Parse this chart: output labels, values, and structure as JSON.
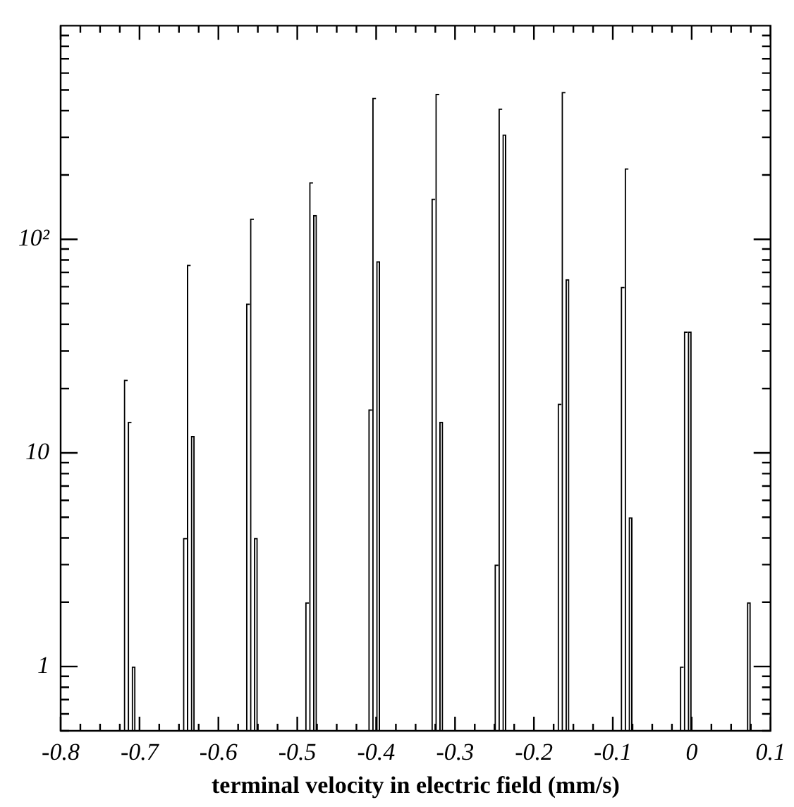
{
  "chart_data": {
    "type": "histogram",
    "xlabel": "terminal velocity in electric field (mm/s)",
    "color": "#000000",
    "log": "y",
    "bins": [
      -0.72,
      -0.715,
      -0.71,
      -0.705,
      -0.645,
      -0.64,
      -0.635,
      -0.63,
      -0.565,
      -0.56,
      -0.555,
      -0.55,
      -0.49,
      -0.485,
      -0.48,
      -0.475,
      -0.41,
      -0.405,
      -0.4,
      -0.395,
      -0.33,
      -0.325,
      -0.32,
      -0.315,
      -0.25,
      -0.245,
      -0.24,
      -0.235,
      -0.17,
      -0.165,
      -0.16,
      -0.155,
      -0.09,
      -0.085,
      -0.08,
      -0.075,
      -0.015,
      -0.01,
      -0.005,
      0,
      0.07,
      0.075
    ],
    "values": [
      22,
      14,
      1,
      null,
      4,
      76,
      12,
      null,
      50,
      125,
      4,
      null,
      2,
      185,
      130,
      null,
      16,
      460,
      79,
      null,
      155,
      480,
      14,
      null,
      3,
      410,
      310,
      null,
      17,
      490,
      65,
      null,
      60,
      215,
      5,
      null,
      1,
      37,
      37,
      null,
      2
    ],
    "xlim": [
      -0.8,
      0.1
    ],
    "xticks": [
      -0.8,
      {
        "value": -0.775,
        "label": null
      },
      {
        "value": -0.75,
        "label": null
      },
      {
        "value": -0.725,
        "label": null
      },
      -0.7,
      {
        "value": -0.675,
        "label": null
      },
      {
        "value": -0.65,
        "label": null
      },
      {
        "value": -0.625,
        "label": null
      },
      -0.6,
      {
        "value": -0.575,
        "label": null
      },
      {
        "value": -0.55,
        "label": null
      },
      {
        "value": -0.525,
        "label": null
      },
      -0.5,
      {
        "value": -0.475,
        "label": null
      },
      {
        "value": -0.45,
        "label": null
      },
      {
        "value": -0.425,
        "label": null
      },
      -0.4,
      {
        "value": -0.375,
        "label": null
      },
      {
        "value": -0.35,
        "label": null
      },
      {
        "value": -0.325,
        "label": null
      },
      -0.3,
      {
        "value": -0.275,
        "label": null
      },
      {
        "value": -0.25,
        "label": null
      },
      {
        "value": -0.225,
        "label": null
      },
      -0.2,
      {
        "value": -0.175,
        "label": null
      },
      {
        "value": -0.15,
        "label": null
      },
      {
        "value": -0.125,
        "label": null
      },
      -0.1,
      {
        "value": -0.075,
        "label": null
      },
      {
        "value": -0.05,
        "label": null
      },
      {
        "value": -0.025,
        "label": null
      },
      0,
      {
        "value": 0.025,
        "label": null
      },
      {
        "value": 0.05,
        "label": null
      },
      {
        "value": 0.075,
        "label": null
      },
      0.1
    ],
    "ylim": [
      0.5,
      1000
    ],
    "yticks": [
      {
        "value": 0.5,
        "label": null
      },
      {
        "value": 0.6,
        "label": null
      },
      {
        "value": 0.7,
        "label": null
      },
      {
        "value": 0.8,
        "label": null
      },
      {
        "value": 0.9,
        "label": null
      },
      1,
      {
        "value": 2,
        "label": null
      },
      {
        "value": 3,
        "label": null
      },
      {
        "value": 4,
        "label": null
      },
      {
        "value": 5,
        "label": null
      },
      {
        "value": 6,
        "label": null
      },
      {
        "value": 7,
        "label": null
      },
      {
        "value": 8,
        "label": null
      },
      {
        "value": 9,
        "label": null
      },
      10,
      {
        "value": 20,
        "label": null
      },
      {
        "value": 30,
        "label": null
      },
      {
        "value": 40,
        "label": null
      },
      {
        "value": 50,
        "label": null
      },
      {
        "value": 60,
        "label": null
      },
      {
        "value": 70,
        "label": null
      },
      {
        "value": 80,
        "label": null
      },
      {
        "value": 90,
        "label": null
      },
      {
        "value": 100,
        "label": "10²"
      },
      {
        "value": 200,
        "label": null
      },
      {
        "value": 300,
        "label": null
      },
      {
        "value": 400,
        "label": null
      },
      {
        "value": 500,
        "label": null
      },
      {
        "value": 600,
        "label": null
      },
      {
        "value": 700,
        "label": null
      },
      {
        "value": 800,
        "label": null
      },
      {
        "value": 900,
        "label": null
      }
    ]
  }
}
